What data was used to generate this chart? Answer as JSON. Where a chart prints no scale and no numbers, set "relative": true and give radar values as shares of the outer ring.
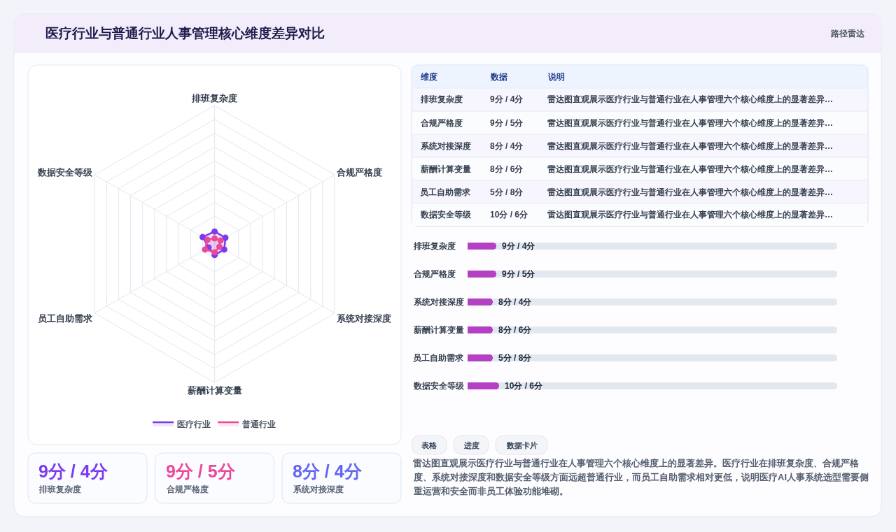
{
  "chart_data": [
    {
      "type": "radar",
      "title": "医疗行业与普通行业人事管理核心维度差异对比",
      "annotations": [
        "路径雷达"
      ],
      "categories": [
        "排班复杂度",
        "合规严格度",
        "系统对接深度",
        "薪酬计算变量",
        "员工自助需求",
        "数据安全等级"
      ],
      "relative": true,
      "grid": true,
      "legend": "bottom",
      "marker": "circle",
      "series": [
        {
          "name": "医疗行业",
          "color": "#7c3aed",
          "values": [
            0.09,
            0.09,
            0.08,
            0.08,
            0.05,
            0.1
          ]
        },
        {
          "name": "普通行业",
          "color": "#ec4899",
          "values": [
            0.04,
            0.05,
            0.04,
            0.06,
            0.08,
            0.06
          ]
        }
      ]
    },
    {
      "type": "other",
      "categories": [
        "维度",
        "数据",
        "说明"
      ],
      "cell_labels": [
        [
          "排班复杂度",
          "9分 / 4分",
          "雷达图直观展示医疗行业与普通行业在人事管理六个核心维度上的显著差异…"
        ],
        [
          "合规严格度",
          "9分 / 5分",
          "雷达图直观展示医疗行业与普通行业在人事管理六个核心维度上的显著差异…"
        ],
        [
          "系统对接深度",
          "8分 / 4分",
          "雷达图直观展示医疗行业与普通行业在人事管理六个核心维度上的显著差异…"
        ],
        [
          "薪酬计算变量",
          "8分 / 6分",
          "雷达图直观展示医疗行业与普通行业在人事管理六个核心维度上的显著差异…"
        ],
        [
          "员工自助需求",
          "5分 / 8分",
          "雷达图直观展示医疗行业与普通行业在人事管理六个核心维度上的显著差异…"
        ],
        [
          "数据安全等级",
          "10分 / 6分",
          "雷达图直观展示医疗行业与普通行业在人事管理六个核心维度上的显著差异…"
        ]
      ]
    },
    {
      "type": "bar",
      "orientation": "horizontal",
      "tick_labels": false,
      "categories": [
        "排班复杂度",
        "合规严格度",
        "系统对接深度",
        "薪酬计算变量",
        "员工自助需求",
        "数据安全等级"
      ],
      "values": [
        9,
        9,
        8,
        8,
        8,
        10
      ],
      "color": "#b441c3",
      "value_labels": [
        "9分 / 4分",
        "9分 / 5分",
        "8分 / 4分",
        "8分 / 6分",
        "5分 / 8分",
        "10分 / 6分"
      ]
    },
    {
      "type": "other",
      "categories": [
        "排班复杂度",
        "合规严格度",
        "系统对接深度"
      ],
      "value_labels": [
        "9分 / 4分",
        "9分 / 5分",
        "8分 / 4分"
      ]
    },
    {
      "type": "other",
      "categories": [
        "表格",
        "进度",
        "数据卡片"
      ],
      "annotations": [
        "雷达图直观展示医疗行业与普通行业在人事管理六个核心维度上的显著差异。医疗行业在排班复杂度、合规严格度、系统对接深度和数据安全等级方面远超普通行业，而员工自助需求相对更低，说明医疗AI人事系统选型需要侧重运营和安全而非员工体验功能堆砌。"
      ]
    }
  ]
}
